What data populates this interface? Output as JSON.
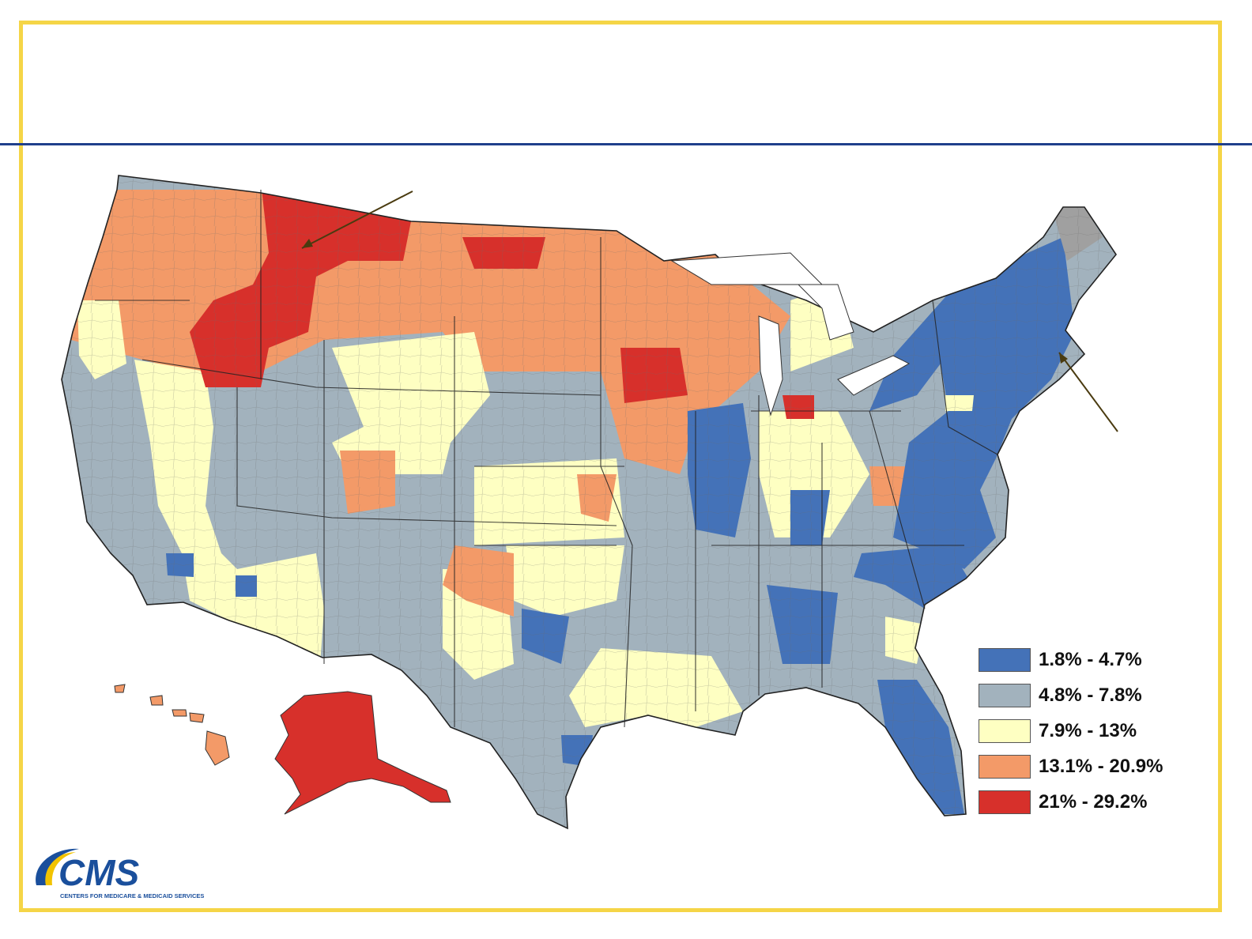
{
  "colors": {
    "border": "#f5d547",
    "rule": "#1f3f8c",
    "cat1": "#4472b8",
    "cat2": "#a2b2bd",
    "cat3": "#feffc2",
    "cat4": "#f39a68",
    "cat5": "#d7302b",
    "nodata": "#a0a0a0",
    "logo_blue": "#1a4f9c",
    "logo_gold": "#f2c300"
  },
  "legend": [
    {
      "label": "1.8% - 4.7%",
      "color": "#4472b8"
    },
    {
      "label": "4.8% - 7.8%",
      "color": "#a2b2bd"
    },
    {
      "label": "7.9% - 13%",
      "color": "#feffc2"
    },
    {
      "label": "13.1% - 20.9%",
      "color": "#f39a68"
    },
    {
      "label": "21% - 29.2%",
      "color": "#d7302b"
    }
  ],
  "logo": {
    "name": "CMS",
    "subtitle": "CENTERS FOR MEDICARE & MEDICAID SERVICES"
  }
}
